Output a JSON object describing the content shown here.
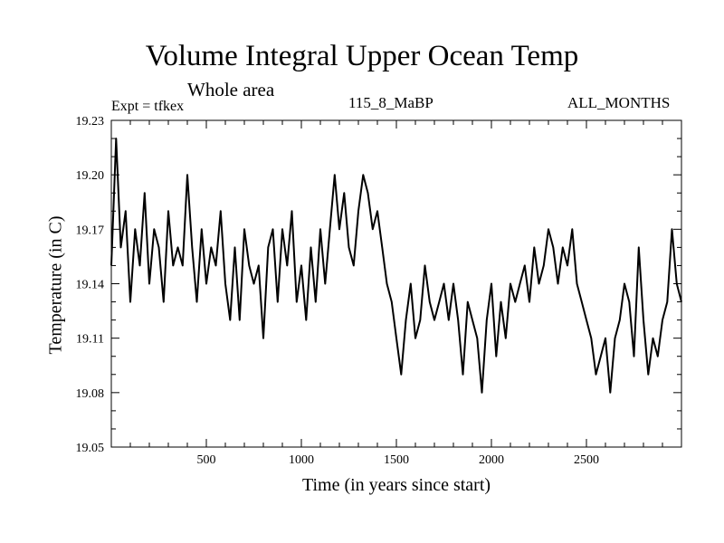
{
  "header": {
    "title": "Volume Integral Upper Ocean Temp",
    "subtitle": "Whole area",
    "expt": "Expt = tfkex",
    "run": "115_8_MaBP",
    "months": "ALL_MONTHS"
  },
  "chart_data": {
    "type": "line",
    "title": "Volume Integral Upper Ocean Temp",
    "subtitle": "Whole area",
    "xlabel": "Time (in years since start)",
    "ylabel": "Temperature (in C)",
    "xlim": [
      0,
      3000
    ],
    "ylim": [
      19.05,
      19.23
    ],
    "x_ticks": [
      500,
      1000,
      1500,
      2000,
      2500
    ],
    "y_ticks": [
      19.05,
      19.08,
      19.11,
      19.14,
      19.17,
      19.2,
      19.23
    ],
    "y_tick_labels": [
      "19.05",
      "19.08",
      "19.11",
      "19.14",
      "19.17",
      "19.20",
      "19.23"
    ],
    "grid": false,
    "series": [
      {
        "x": [
          0,
          25,
          50,
          75,
          100,
          125,
          150,
          175,
          200,
          225,
          250,
          275,
          300,
          325,
          350,
          375,
          400,
          425,
          450,
          475,
          500,
          525,
          550,
          575,
          600,
          625,
          650,
          675,
          700,
          725,
          750,
          775,
          800,
          825,
          850,
          875,
          900,
          925,
          950,
          975,
          1000,
          1025,
          1050,
          1075,
          1100,
          1125,
          1150,
          1175,
          1200,
          1225,
          1250,
          1275,
          1300,
          1325,
          1350,
          1375,
          1400,
          1425,
          1450,
          1475,
          1500,
          1525,
          1550,
          1575,
          1600,
          1625,
          1650,
          1675,
          1700,
          1725,
          1750,
          1775,
          1800,
          1825,
          1850,
          1875,
          1900,
          1925,
          1950,
          1975,
          2000,
          2025,
          2050,
          2075,
          2100,
          2125,
          2150,
          2175,
          2200,
          2225,
          2250,
          2275,
          2300,
          2325,
          2350,
          2375,
          2400,
          2425,
          2450,
          2475,
          2500,
          2525,
          2550,
          2575,
          2600,
          2625,
          2650,
          2675,
          2700,
          2725,
          2750,
          2775,
          2800,
          2825,
          2850,
          2875,
          2900,
          2925,
          2950,
          2975,
          3000
        ],
        "values": [
          19.15,
          19.22,
          19.16,
          19.18,
          19.13,
          19.17,
          19.15,
          19.19,
          19.14,
          19.17,
          19.16,
          19.13,
          19.18,
          19.15,
          19.16,
          19.15,
          19.2,
          19.16,
          19.13,
          19.17,
          19.14,
          19.16,
          19.15,
          19.18,
          19.14,
          19.12,
          19.16,
          19.12,
          19.17,
          19.15,
          19.14,
          19.15,
          19.11,
          19.16,
          19.17,
          19.13,
          19.17,
          19.15,
          19.18,
          19.13,
          19.15,
          19.12,
          19.16,
          19.13,
          19.17,
          19.14,
          19.17,
          19.2,
          19.17,
          19.19,
          19.16,
          19.15,
          19.18,
          19.2,
          19.19,
          19.17,
          19.18,
          19.16,
          19.14,
          19.13,
          19.11,
          19.09,
          19.12,
          19.14,
          19.11,
          19.12,
          19.15,
          19.13,
          19.12,
          19.13,
          19.14,
          19.12,
          19.14,
          19.12,
          19.09,
          19.13,
          19.12,
          19.11,
          19.08,
          19.12,
          19.14,
          19.1,
          19.13,
          19.11,
          19.14,
          19.13,
          19.14,
          19.15,
          19.13,
          19.16,
          19.14,
          19.15,
          19.17,
          19.16,
          19.14,
          19.16,
          19.15,
          19.17,
          19.14,
          19.13,
          19.12,
          19.11,
          19.09,
          19.1,
          19.11,
          19.08,
          19.11,
          19.12,
          19.14,
          19.13,
          19.1,
          19.16,
          19.12,
          19.09,
          19.11,
          19.1,
          19.12,
          19.13,
          19.17,
          19.14,
          19.13
        ]
      }
    ]
  }
}
